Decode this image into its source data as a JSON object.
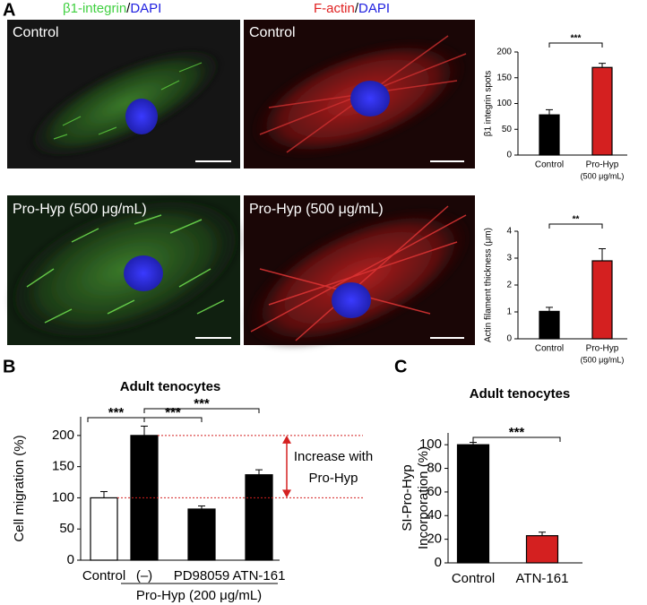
{
  "panel_labels": [
    "A",
    "B",
    "C"
  ],
  "stain_headers": [
    [
      "β1-integrin",
      "/",
      "DAPI"
    ],
    [
      "F-actin",
      "/",
      "DAPI"
    ]
  ],
  "image_labels": [
    "Control",
    "Control",
    "Pro-Hyp (500 μg/mL)",
    "Pro-Hyp (500 μg/mL)"
  ],
  "chart_data": [
    {
      "type": "bar",
      "ylabel": [
        "β1 integrin spots"
      ],
      "categories": [
        "Control",
        "Pro-Hyp"
      ],
      "category_sublabels": [
        null,
        "(500 μg/mL)"
      ],
      "values": [
        78,
        170
      ],
      "errors": [
        10,
        8
      ],
      "colors": [
        "#000000",
        "#d42020"
      ],
      "ylim": [
        0,
        200
      ],
      "yticks": [
        0,
        50,
        100,
        150,
        200
      ],
      "significance_labels": [
        "***"
      ]
    },
    {
      "type": "bar",
      "ylabel": [
        "Actin filament thickness (μm)"
      ],
      "categories": [
        "Control",
        "Pro-Hyp"
      ],
      "category_sublabels": [
        null,
        "(500 μg/mL)"
      ],
      "values": [
        1.02,
        2.9
      ],
      "errors": [
        0.15,
        0.45
      ],
      "colors": [
        "#000000",
        "#d42020"
      ],
      "ylim": [
        0,
        4
      ],
      "yticks": [
        0,
        1,
        2,
        3,
        4
      ],
      "significance_labels": [
        "**"
      ]
    },
    {
      "type": "bar",
      "title": "Adult tenocytes",
      "ylabel": [
        "Cell migration (%)"
      ],
      "categories": [
        "Control",
        "(–)",
        "PD98059",
        "ATN-161"
      ],
      "group_label": "Pro-Hyp (200 μg/mL)",
      "values": [
        100,
        200,
        82,
        137
      ],
      "errors": [
        10,
        15,
        5,
        8
      ],
      "colors": [
        "#ffffff",
        "#000000",
        "#000000",
        "#000000"
      ],
      "ylim": [
        0,
        230
      ],
      "yticks": [
        0,
        50,
        100,
        150,
        200
      ],
      "significance_labels": [
        "***",
        "***",
        "***"
      ],
      "annotation": [
        "Increase with",
        "Pro-Hyp"
      ]
    },
    {
      "type": "bar",
      "title": "Adult tenocytes",
      "ylabel": [
        "SI-Pro-Hyp",
        "Incorporation (%)"
      ],
      "categories": [
        "Control",
        "ATN-161"
      ],
      "values": [
        100,
        23
      ],
      "errors": [
        2,
        3
      ],
      "colors": [
        "#000000",
        "#d42020"
      ],
      "ylim": [
        0,
        110
      ],
      "yticks": [
        0,
        20,
        40,
        60,
        80,
        100
      ],
      "significance_labels": [
        "***"
      ]
    }
  ]
}
